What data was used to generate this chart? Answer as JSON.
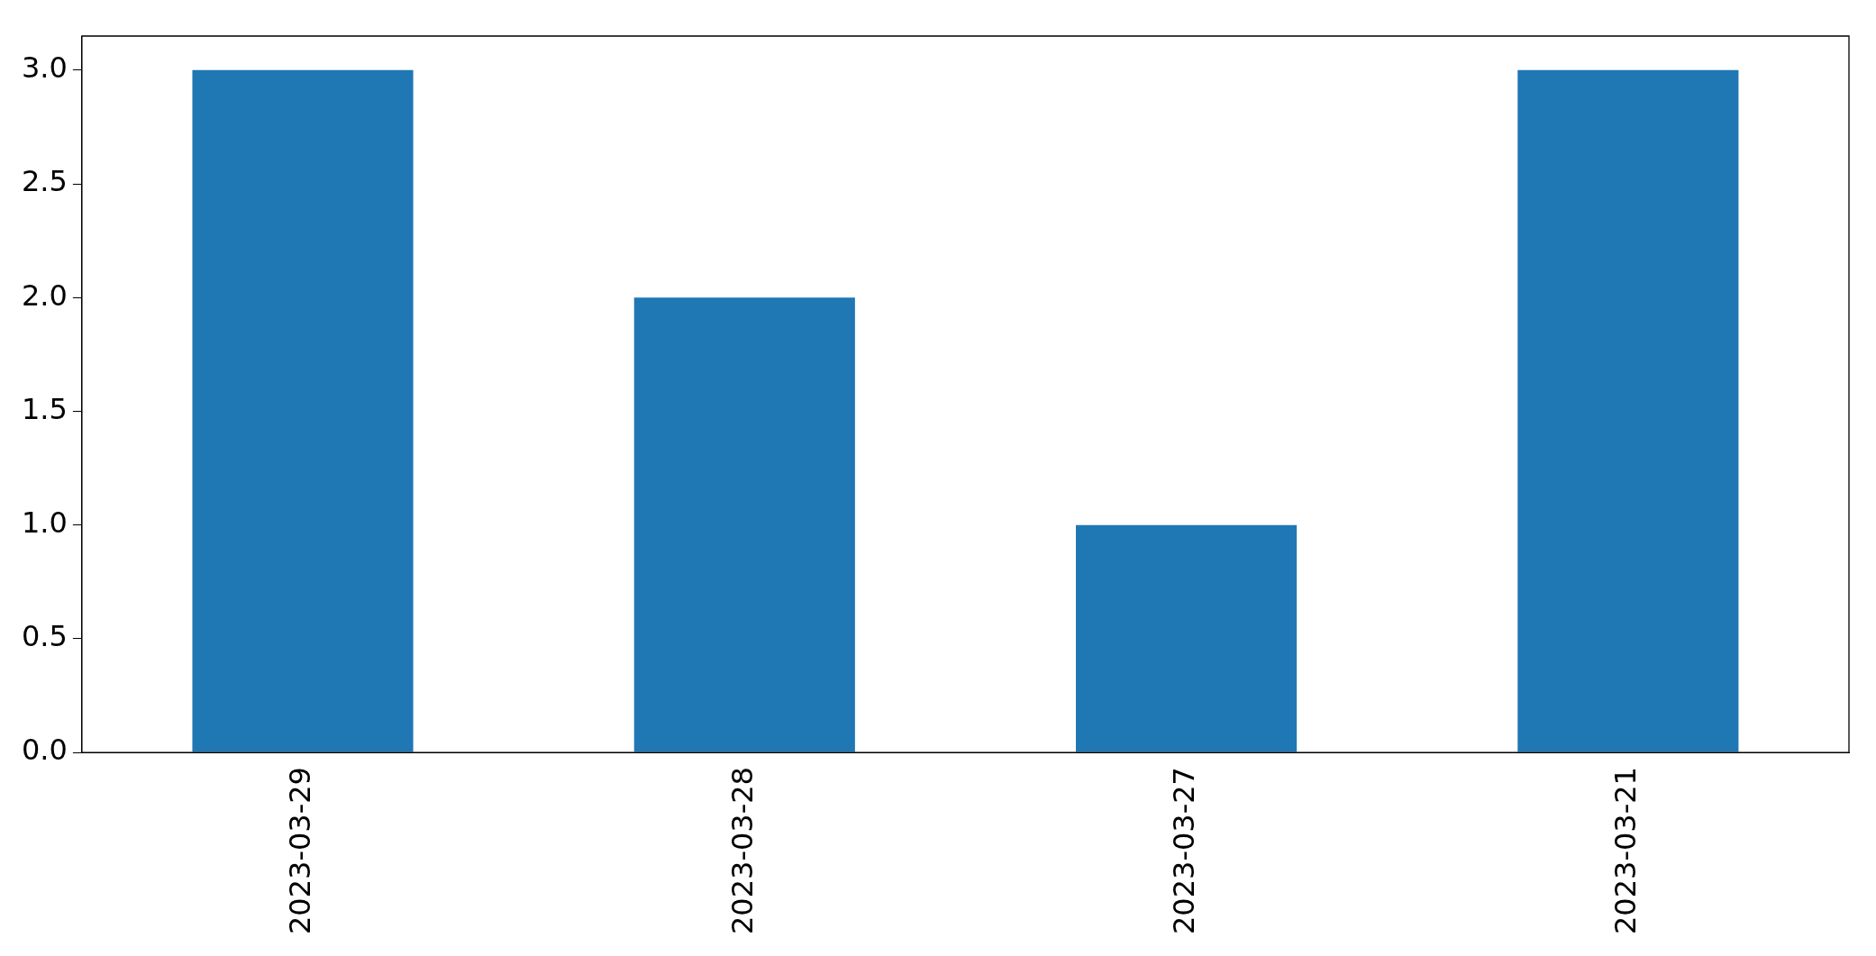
{
  "chart_data": {
    "type": "bar",
    "categories": [
      "2023-03-29",
      "2023-03-28",
      "2023-03-27",
      "2023-03-21"
    ],
    "values": [
      3,
      2,
      1,
      3
    ],
    "color": "#1f77b4",
    "ylim": [
      0,
      3.15
    ],
    "yticks": [
      {
        "value": 0,
        "label": "0.0"
      },
      {
        "value": 0.5,
        "label": "0.5"
      },
      {
        "value": 1,
        "label": "1.0"
      },
      {
        "value": 1.5,
        "label": "1.5"
      },
      {
        "value": 2,
        "label": "2.0"
      },
      {
        "value": 2.5,
        "label": "2.5"
      },
      {
        "value": 3,
        "label": "3.0"
      }
    ],
    "grid": false,
    "legend": false
  }
}
